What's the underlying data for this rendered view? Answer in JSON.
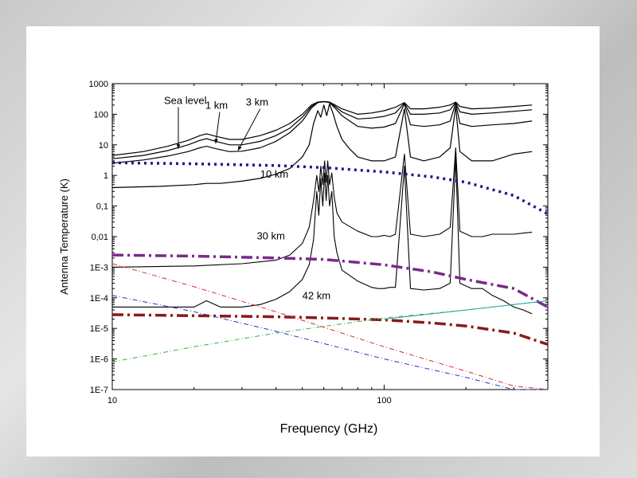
{
  "chart_data": {
    "type": "line",
    "xlabel": "Frequency (GHz)",
    "ylabel": "Antenna Temperature (K)",
    "x_scale": "log",
    "y_scale": "log",
    "xlim": [
      10,
      400
    ],
    "ylim": [
      1e-07,
      1000
    ],
    "x_ticks": [
      {
        "value": 10,
        "label": "10"
      },
      {
        "value": 100,
        "label": "100"
      }
    ],
    "y_ticks": [
      {
        "value": 1000,
        "label": "1000"
      },
      {
        "value": 100,
        "label": "100"
      },
      {
        "value": 10,
        "label": "10"
      },
      {
        "value": 1,
        "label": "1"
      },
      {
        "value": 0.1,
        "label": "0,1"
      },
      {
        "value": 0.01,
        "label": "0,01"
      },
      {
        "value": 0.001,
        "label": "1E-3"
      },
      {
        "value": 0.0001,
        "label": "1E-4"
      },
      {
        "value": 1e-05,
        "label": "1E-5"
      },
      {
        "value": 1e-06,
        "label": "1E-6"
      },
      {
        "value": 1e-07,
        "label": "1E-7"
      }
    ],
    "grid": false,
    "annotations": [
      {
        "text": "Sea level",
        "x": 15.5,
        "y": 220
      },
      {
        "text": "1 km",
        "x": 22,
        "y": 150
      },
      {
        "text": "3 km",
        "x": 31,
        "y": 190
      },
      {
        "text": "10 km",
        "x": 35,
        "y": 0.85
      },
      {
        "text": "30 km",
        "x": 34,
        "y": 0.008
      },
      {
        "text": "42 km",
        "x": 50,
        "y": 9e-05
      }
    ],
    "series": [
      {
        "key": "sea_level",
        "color": "#000000",
        "style": "solid",
        "width": 1.2,
        "x": [
          10,
          13,
          16,
          19,
          21,
          22.2,
          24,
          27,
          30,
          35,
          40,
          45,
          50,
          54,
          57,
          60,
          63,
          66,
          70,
          80,
          90,
          100,
          110,
          118.75,
          125,
          140,
          160,
          175,
          183.3,
          190,
          210,
          250,
          300,
          350
        ],
        "y": [
          4.5,
          6,
          9,
          14,
          20,
          23,
          19,
          15,
          15,
          20,
          30,
          50,
          100,
          200,
          250,
          260,
          250,
          200,
          150,
          100,
          110,
          130,
          170,
          240,
          150,
          150,
          170,
          200,
          250,
          180,
          150,
          160,
          180,
          200
        ]
      },
      {
        "key": "1km",
        "color": "#000000",
        "style": "solid",
        "width": 1.2,
        "x": [
          10,
          13,
          16,
          19,
          21,
          22.2,
          24,
          27,
          30,
          35,
          40,
          45,
          50,
          54,
          57,
          60,
          63,
          66,
          70,
          80,
          90,
          100,
          110,
          118.75,
          125,
          140,
          160,
          175,
          183.3,
          190,
          210,
          250,
          300,
          350
        ],
        "y": [
          3.5,
          4.5,
          6.5,
          10,
          14,
          16,
          13,
          10,
          10,
          13,
          20,
          35,
          80,
          180,
          245,
          260,
          245,
          180,
          120,
          70,
          75,
          85,
          110,
          230,
          100,
          100,
          110,
          140,
          245,
          120,
          100,
          110,
          125,
          140
        ]
      },
      {
        "key": "3km",
        "color": "#000000",
        "style": "solid",
        "width": 1.2,
        "x": [
          10,
          13,
          16,
          19,
          21,
          22.2,
          24,
          27,
          30,
          35,
          40,
          45,
          50,
          54,
          57,
          60,
          63,
          66,
          70,
          80,
          90,
          100,
          110,
          118.75,
          125,
          140,
          160,
          175,
          183.3,
          190,
          210,
          250,
          300,
          350
        ],
        "y": [
          2.5,
          3.2,
          4.3,
          6,
          8,
          9,
          7.5,
          6,
          6.2,
          8,
          13,
          25,
          60,
          160,
          240,
          260,
          240,
          160,
          90,
          40,
          35,
          38,
          50,
          220,
          45,
          40,
          45,
          60,
          235,
          50,
          40,
          45,
          50,
          60
        ]
      },
      {
        "key": "10km",
        "color": "#000000",
        "style": "solid",
        "width": 1.2,
        "x": [
          10,
          15,
          20,
          22.2,
          25,
          30,
          35,
          40,
          45,
          50,
          53,
          55,
          57,
          58.5,
          60,
          61.5,
          63,
          65,
          67,
          70,
          75,
          80,
          90,
          100,
          110,
          118.75,
          125,
          140,
          160,
          175,
          183.3,
          190,
          210,
          250,
          300,
          350
        ],
        "y": [
          0.4,
          0.44,
          0.5,
          0.55,
          0.55,
          0.65,
          0.8,
          1.1,
          1.7,
          4,
          10,
          50,
          130,
          80,
          200,
          90,
          220,
          100,
          40,
          15,
          7,
          4,
          3,
          3,
          4,
          150,
          4,
          3,
          4,
          8,
          180,
          6,
          3,
          3,
          5,
          6
        ]
      },
      {
        "key": "30km",
        "color": "#000000",
        "style": "solid",
        "width": 1.1,
        "x": [
          10,
          20,
          30,
          40,
          45,
          50,
          53,
          55,
          56.5,
          57.5,
          58.5,
          59.5,
          60.4,
          61.2,
          62,
          63,
          64.2,
          65.5,
          67,
          70,
          80,
          90,
          95,
          100,
          105,
          110,
          118.75,
          125,
          140,
          160,
          175,
          183.3,
          190,
          210,
          230,
          250,
          275,
          300,
          325,
          350
        ],
        "y": [
          0.001,
          0.0011,
          0.0013,
          0.0017,
          0.0025,
          0.006,
          0.02,
          0.15,
          1,
          0.3,
          2,
          0.5,
          3,
          0.6,
          3,
          0.5,
          1.2,
          0.2,
          0.06,
          0.03,
          0.015,
          0.01,
          0.01,
          0.011,
          0.01,
          0.012,
          5,
          0.012,
          0.01,
          0.012,
          0.02,
          8,
          0.015,
          0.01,
          0.01,
          0.012,
          0.012,
          0.012,
          0.013,
          0.014
        ]
      },
      {
        "key": "42km",
        "color": "#000000",
        "style": "solid",
        "width": 1.1,
        "x": [
          10,
          20,
          22.2,
          25,
          30,
          35,
          40,
          45,
          50,
          53,
          55,
          56.5,
          57.5,
          58.5,
          59.5,
          60.4,
          61.2,
          62,
          63,
          64.2,
          65.5,
          67,
          70,
          80,
          90,
          95,
          100,
          105,
          110,
          118.75,
          125,
          140,
          160,
          175,
          183.3,
          190,
          210,
          230,
          250,
          275,
          300,
          325,
          350
        ],
        "y": [
          5e-05,
          5e-05,
          8e-05,
          5e-05,
          5e-05,
          6e-05,
          9e-05,
          0.00016,
          0.0004,
          0.0012,
          0.008,
          0.3,
          0.05,
          0.8,
          0.1,
          1.2,
          0.15,
          1,
          0.1,
          0.3,
          0.01,
          0.003,
          0.0008,
          0.00035,
          0.00022,
          0.0002,
          0.0002,
          0.00022,
          0.00022,
          2,
          0.0002,
          0.00018,
          0.0002,
          0.0003,
          4,
          0.0003,
          0.0002,
          0.0002,
          0.00012,
          8e-05,
          5e-05,
          4e-05,
          3e-05
        ]
      },
      {
        "key": "navy_dotted",
        "color": "#1a1a8c",
        "style": "dotted",
        "width": 3.5,
        "x": [
          10,
          20,
          40,
          60,
          100,
          150,
          200,
          300,
          400
        ],
        "y": [
          2.6,
          2.4,
          2.1,
          1.8,
          1.3,
          0.9,
          0.6,
          0.22,
          0.055
        ]
      },
      {
        "key": "purple_dashdot",
        "color": "#7a2a8a",
        "style": "dashdot",
        "width": 3.5,
        "x": [
          10,
          20,
          40,
          60,
          100,
          150,
          200,
          300,
          400
        ],
        "y": [
          0.0025,
          0.0023,
          0.002,
          0.0018,
          0.0012,
          0.0007,
          0.0004,
          0.0002,
          5e-05
        ]
      },
      {
        "key": "darkred_dashdot",
        "color": "#8b1a1a",
        "style": "dashdot",
        "width": 3.5,
        "x": [
          10,
          20,
          40,
          60,
          100,
          150,
          200,
          300,
          400
        ],
        "y": [
          2.8e-05,
          2.6e-05,
          2.4e-05,
          2.2e-05,
          1.9e-05,
          1.5e-05,
          1.2e-05,
          7e-06,
          3e-06
        ]
      },
      {
        "key": "blue_thin",
        "color": "#3030c0",
        "style": "dashdot-thin",
        "width": 1,
        "x": [
          10,
          20,
          40,
          100,
          200,
          300,
          400
        ],
        "y": [
          0.00012,
          3.5e-05,
          8e-06,
          1e-06,
          2.5e-07,
          1e-07,
          5e-08
        ]
      },
      {
        "key": "red_thin",
        "color": "#d03030",
        "style": "dashdot-thin",
        "width": 1,
        "x": [
          10,
          20,
          40,
          100,
          200,
          300,
          400
        ],
        "y": [
          0.0013,
          0.00023,
          3.5e-05,
          2.5e-06,
          4e-07,
          1.3e-07,
          6e-08
        ]
      },
      {
        "key": "green_thin",
        "color": "#40b040",
        "style": "dashdot-thin",
        "width": 1,
        "x": [
          10,
          20,
          40,
          100,
          200,
          300,
          400
        ],
        "y": [
          8e-07,
          2.5e-06,
          7e-06,
          2.2e-05,
          4e-05,
          6e-05,
          8e-05
        ]
      },
      {
        "key": "teal_thin",
        "color": "#2aa0a0",
        "style": "solid-thin",
        "width": 1,
        "x": [
          100,
          150,
          200,
          300,
          400
        ],
        "y": [
          2e-05,
          3e-05,
          4e-05,
          6e-05,
          8e-05
        ]
      }
    ]
  }
}
